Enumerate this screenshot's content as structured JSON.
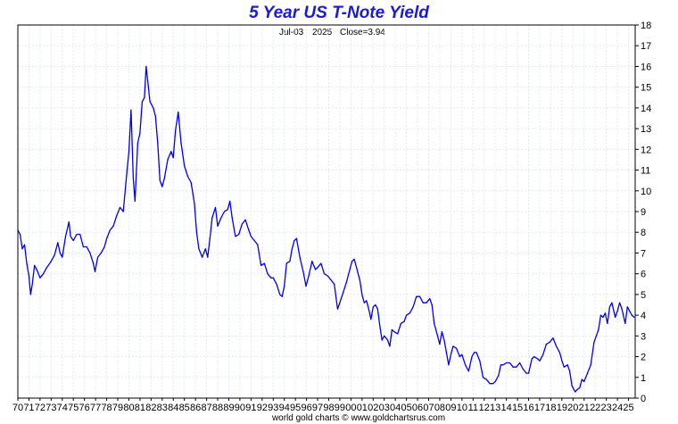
{
  "chart_data": {
    "type": "line",
    "title": "5 Year US T-Note Yield",
    "info": {
      "date": "Jul-03",
      "year": "2025",
      "close_label": "Close=3.94"
    },
    "footer": "world gold charts © www.goldchartsrus.com",
    "xlabel": "",
    "ylabel": "",
    "ylim": [
      0,
      18
    ],
    "xlim": [
      1970.0,
      2025.6
    ],
    "y_ticks": [
      0,
      1,
      2,
      3,
      4,
      5,
      6,
      7,
      8,
      9,
      10,
      11,
      12,
      13,
      14,
      15,
      16,
      17,
      18
    ],
    "x_tick_labels": [
      "70",
      "71",
      "72",
      "73",
      "74",
      "75",
      "76",
      "77",
      "78",
      "79",
      "80",
      "81",
      "82",
      "83",
      "84",
      "85",
      "86",
      "87",
      "88",
      "89",
      "90",
      "91",
      "92",
      "93",
      "94",
      "95",
      "96",
      "97",
      "98",
      "99",
      "00",
      "01",
      "02",
      "03",
      "04",
      "05",
      "06",
      "07",
      "08",
      "09",
      "10",
      "11",
      "12",
      "13",
      "14",
      "15",
      "16",
      "17",
      "18",
      "19",
      "20",
      "21",
      "22",
      "23",
      "24",
      "25"
    ],
    "x_tick_years": [
      1970,
      1971,
      1972,
      1973,
      1974,
      1975,
      1976,
      1977,
      1978,
      1979,
      1980,
      1981,
      1982,
      1983,
      1984,
      1985,
      1986,
      1987,
      1988,
      1989,
      1990,
      1991,
      1992,
      1993,
      1994,
      1995,
      1996,
      1997,
      1998,
      1999,
      2000,
      2001,
      2002,
      2003,
      2004,
      2005,
      2006,
      2007,
      2008,
      2009,
      2010,
      2011,
      2012,
      2013,
      2014,
      2015,
      2016,
      2017,
      2018,
      2019,
      2020,
      2021,
      2022,
      2023,
      2024,
      2025
    ],
    "grid": true,
    "colors": {
      "title": "#1a1adb",
      "line": "#0000ee",
      "axis": "#000000",
      "grid": "#e3e8f0"
    },
    "series": [
      {
        "x": [
          1970.0,
          1970.2,
          1970.4,
          1970.6,
          1970.8,
          1971.0,
          1971.15,
          1971.3,
          1971.5,
          1971.7,
          1972.0,
          1972.3,
          1972.6,
          1973.0,
          1973.3,
          1973.6,
          1973.8,
          1974.0,
          1974.3,
          1974.6,
          1974.75,
          1975.0,
          1975.3,
          1975.6,
          1975.9,
          1976.2,
          1976.5,
          1976.8,
          1976.95,
          1977.2,
          1977.5,
          1977.8,
          1978.0,
          1978.3,
          1978.6,
          1978.9,
          1979.2,
          1979.5,
          1979.8,
          1980.0,
          1980.2,
          1980.4,
          1980.55,
          1980.8,
          1981.0,
          1981.2,
          1981.4,
          1981.55,
          1981.7,
          1981.9,
          1982.0,
          1982.2,
          1982.4,
          1982.6,
          1982.8,
          1983.0,
          1983.2,
          1983.5,
          1983.8,
          1984.0,
          1984.2,
          1984.45,
          1984.7,
          1985.0,
          1985.3,
          1985.6,
          1985.9,
          1986.1,
          1986.3,
          1986.6,
          1986.9,
          1987.1,
          1987.3,
          1987.5,
          1987.8,
          1988.0,
          1988.3,
          1988.6,
          1988.9,
          1989.1,
          1989.3,
          1989.6,
          1989.9,
          1990.2,
          1990.5,
          1990.8,
          1991.0,
          1991.3,
          1991.6,
          1991.9,
          1992.2,
          1992.5,
          1992.8,
          1993.0,
          1993.3,
          1993.6,
          1993.8,
          1994.0,
          1994.2,
          1994.5,
          1994.7,
          1994.9,
          1995.1,
          1995.4,
          1995.7,
          1995.95,
          1996.2,
          1996.5,
          1996.8,
          1997.0,
          1997.3,
          1997.6,
          1997.9,
          1998.2,
          1998.5,
          1998.8,
          1999.0,
          1999.3,
          1999.6,
          1999.9,
          2000.1,
          2000.3,
          2000.5,
          2000.8,
          2001.0,
          2001.2,
          2001.4,
          2001.6,
          2001.8,
          2002.0,
          2002.2,
          2002.4,
          2002.6,
          2002.8,
          2003.0,
          2003.3,
          2003.5,
          2003.7,
          2003.9,
          2004.2,
          2004.5,
          2004.8,
          2005.0,
          2005.3,
          2005.6,
          2005.9,
          2006.2,
          2006.5,
          2006.8,
          2007.1,
          2007.3,
          2007.5,
          2007.8,
          2008.0,
          2008.2,
          2008.4,
          2008.6,
          2008.8,
          2009.0,
          2009.2,
          2009.5,
          2009.8,
          2010.0,
          2010.3,
          2010.6,
          2010.9,
          2011.1,
          2011.3,
          2011.6,
          2011.9,
          2012.2,
          2012.5,
          2012.8,
          2013.0,
          2013.3,
          2013.5,
          2013.7,
          2014.0,
          2014.3,
          2014.6,
          2014.9,
          2015.2,
          2015.5,
          2015.8,
          2016.0,
          2016.3,
          2016.5,
          2016.8,
          2017.0,
          2017.3,
          2017.6,
          2017.9,
          2018.2,
          2018.5,
          2018.8,
          2019.0,
          2019.2,
          2019.5,
          2019.7,
          2019.9,
          2020.1,
          2020.2,
          2020.35,
          2020.6,
          2020.8,
          2021.0,
          2021.3,
          2021.6,
          2021.9,
          2022.1,
          2022.3,
          2022.5,
          2022.7,
          2022.9,
          2023.1,
          2023.3,
          2023.5,
          2023.8,
          2024.0,
          2024.2,
          2024.4,
          2024.7,
          2024.9,
          2025.1,
          2025.3,
          2025.5
        ],
        "y": [
          8.1,
          7.9,
          7.2,
          7.4,
          6.5,
          5.9,
          5.0,
          5.5,
          6.4,
          6.2,
          5.8,
          6.0,
          6.3,
          6.6,
          6.9,
          7.5,
          7.0,
          6.8,
          7.8,
          8.5,
          7.8,
          7.6,
          7.9,
          7.9,
          7.3,
          7.3,
          7.0,
          6.5,
          6.1,
          6.8,
          7.0,
          7.3,
          7.7,
          8.1,
          8.3,
          8.8,
          9.2,
          9.0,
          10.8,
          11.9,
          13.9,
          10.6,
          9.5,
          12.3,
          12.8,
          14.3,
          14.5,
          16.0,
          15.3,
          14.3,
          14.2,
          14.0,
          13.6,
          12.3,
          10.5,
          10.2,
          10.6,
          11.5,
          11.9,
          11.6,
          12.9,
          13.8,
          12.3,
          11.2,
          10.7,
          10.4,
          9.4,
          8.0,
          7.2,
          6.8,
          7.2,
          6.8,
          7.7,
          8.7,
          9.2,
          8.3,
          8.7,
          9.0,
          9.1,
          9.5,
          8.7,
          7.8,
          7.9,
          8.4,
          8.6,
          8.1,
          7.8,
          7.6,
          7.4,
          6.4,
          6.5,
          6.0,
          5.8,
          5.8,
          5.5,
          5.0,
          4.9,
          5.4,
          6.5,
          6.6,
          7.2,
          7.6,
          7.7,
          6.8,
          6.1,
          5.4,
          5.9,
          6.6,
          6.2,
          6.3,
          6.5,
          6.0,
          5.9,
          5.7,
          5.5,
          4.3,
          4.6,
          5.1,
          5.6,
          6.2,
          6.6,
          6.7,
          6.3,
          5.7,
          5.0,
          4.6,
          4.7,
          4.3,
          3.8,
          4.4,
          4.5,
          4.3,
          3.5,
          2.8,
          3.0,
          2.8,
          2.5,
          3.3,
          3.2,
          3.1,
          3.6,
          3.7,
          4.0,
          4.1,
          4.4,
          4.9,
          4.9,
          4.6,
          4.6,
          4.8,
          4.5,
          3.6,
          3.0,
          2.6,
          3.2,
          2.8,
          2.2,
          1.6,
          2.1,
          2.5,
          2.4,
          2.0,
          2.1,
          1.6,
          1.3,
          2.0,
          2.2,
          2.2,
          1.8,
          1.0,
          0.9,
          0.7,
          0.7,
          0.8,
          1.1,
          1.6,
          1.6,
          1.7,
          1.7,
          1.5,
          1.5,
          1.7,
          1.4,
          1.2,
          1.2,
          1.9,
          2.0,
          1.9,
          1.8,
          2.1,
          2.6,
          2.7,
          2.9,
          2.5,
          2.2,
          1.8,
          1.5,
          1.6,
          1.3,
          0.6,
          0.4,
          0.3,
          0.4,
          0.5,
          0.9,
          0.8,
          1.2,
          1.6,
          2.7,
          3.0,
          3.3,
          4.0,
          3.9,
          4.1,
          3.6,
          4.4,
          4.6,
          3.9,
          4.2,
          4.6,
          4.3,
          3.6,
          4.4,
          4.2,
          4.0,
          3.9
        ]
      }
    ]
  }
}
